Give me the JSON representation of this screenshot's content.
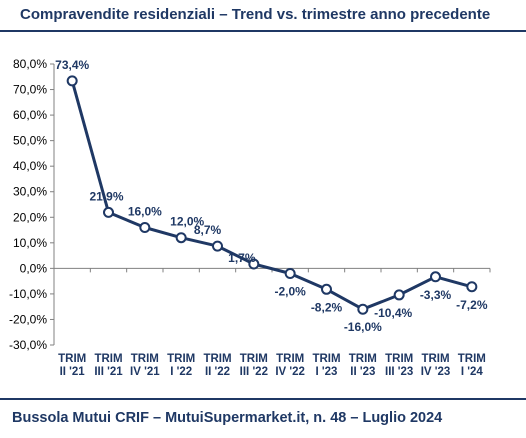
{
  "chart_data": {
    "type": "line",
    "title": "Compravendite residenziali – Trend vs. trimestre anno precedente",
    "footer": "Bussola Mutui CRIF – MutuiSupermarket.it, n. 48 – Luglio 2024",
    "categories": [
      [
        "TRIM",
        "II '21"
      ],
      [
        "TRIM",
        "III '21"
      ],
      [
        "TRIM",
        "IV '21"
      ],
      [
        "TRIM",
        "I '22"
      ],
      [
        "TRIM",
        "II '22"
      ],
      [
        "TRIM",
        "III '22"
      ],
      [
        "TRIM",
        "IV '22"
      ],
      [
        "TRIM",
        "I '23"
      ],
      [
        "TRIM",
        "II '23"
      ],
      [
        "TRIM",
        "III '23"
      ],
      [
        "TRIM",
        "IV '23"
      ],
      [
        "TRIM",
        "I '24"
      ]
    ],
    "values": [
      73.4,
      21.9,
      16.0,
      12.0,
      8.7,
      1.7,
      -2.0,
      -8.2,
      -16.0,
      -10.4,
      -3.3,
      -7.2
    ],
    "data_labels": [
      "73,4%",
      "21,9%",
      "16,0%",
      "12,0%",
      "8,7%",
      "1,7%",
      "-2,0%",
      "-8,2%",
      "-16,0%",
      "-10,4%",
      "-3,3%",
      "-7,2%"
    ],
    "ylim": [
      -30,
      80
    ],
    "yticks": [
      80,
      70,
      60,
      50,
      40,
      30,
      20,
      10,
      0,
      -10,
      -20,
      -30
    ],
    "ytick_labels": [
      "80,0%",
      "70,0%",
      "60,0%",
      "50,0%",
      "40,0%",
      "30,0%",
      "20,0%",
      "10,0%",
      "0,0%",
      "-10,0%",
      "-20,0%",
      "-30,0%"
    ],
    "grid": false,
    "legend": "none",
    "colors": {
      "line": "#1f3864",
      "marker_fill": "#ffffff",
      "text": "#1f3864",
      "axis": "#808080"
    }
  }
}
